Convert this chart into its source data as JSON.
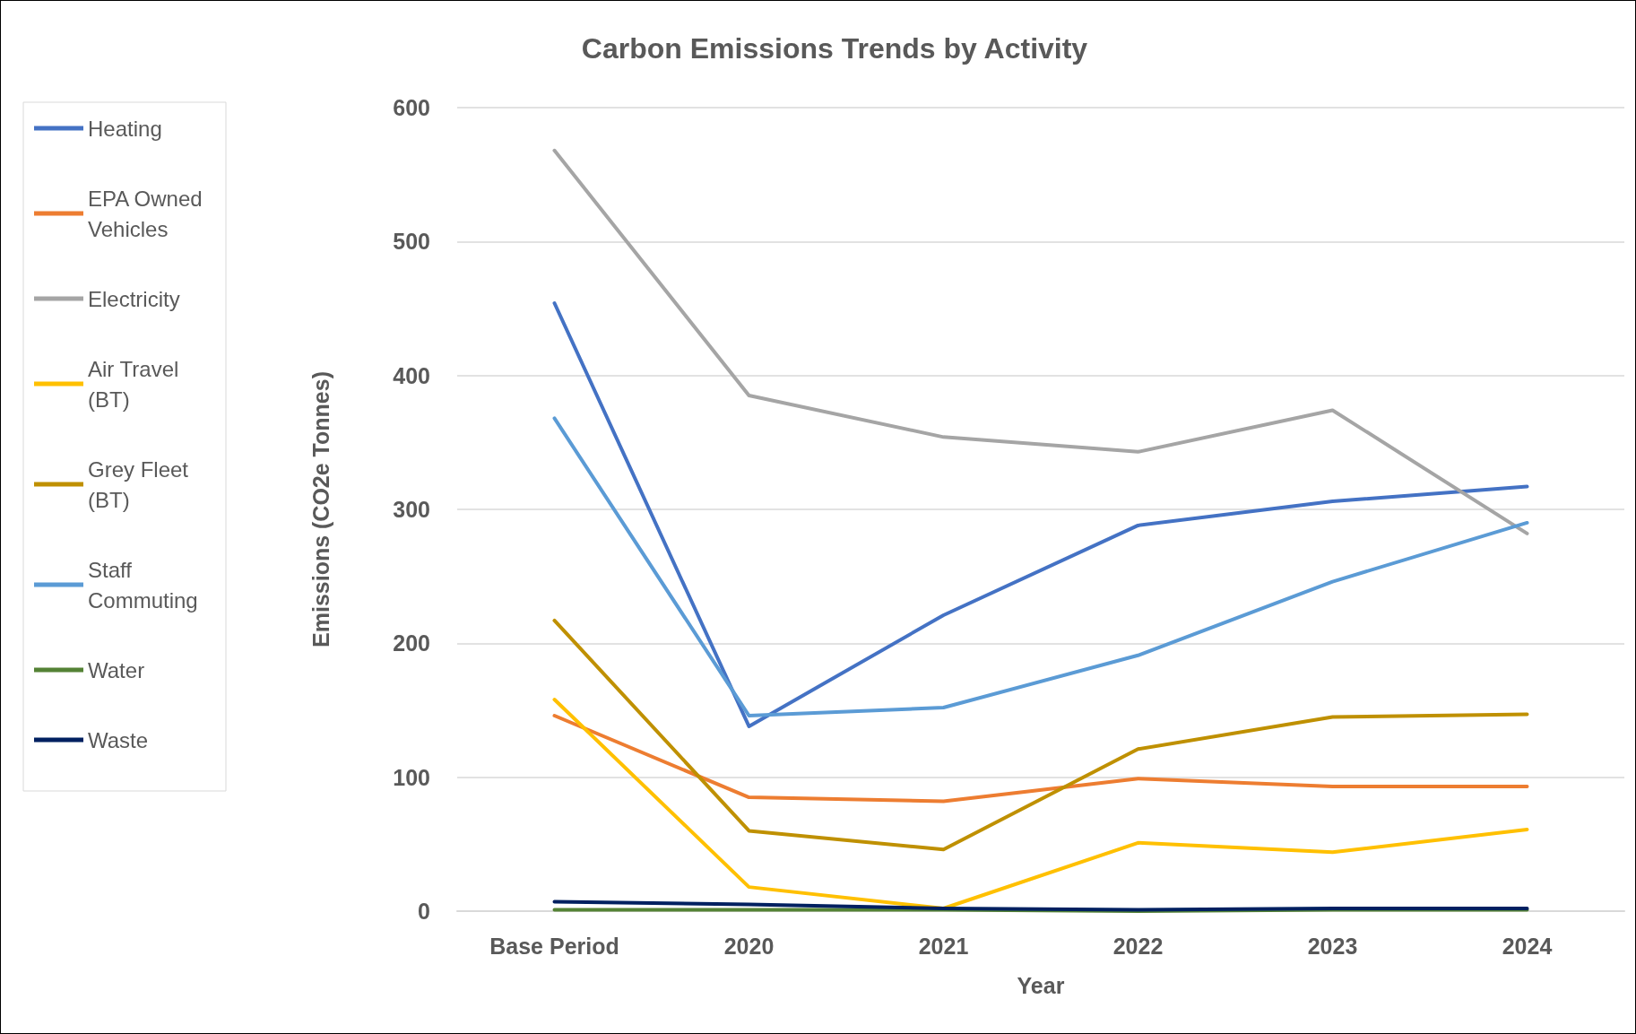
{
  "chart_data": {
    "type": "line",
    "title": "Carbon Emissions Trends by Activity",
    "xlabel": "Year",
    "ylabel": "Emissions (CO2e Tonnes)",
    "categories": [
      "Base Period",
      "2020",
      "2021",
      "2022",
      "2023",
      "2024"
    ],
    "series": [
      {
        "name": "Heating",
        "color": "#4472c4",
        "values": [
          454,
          138,
          221,
          288,
          306,
          317
        ]
      },
      {
        "name": "EPA Owned Vehicles",
        "color": "#ed7d31",
        "values": [
          146,
          85,
          82,
          99,
          93,
          93
        ]
      },
      {
        "name": "Electricity",
        "color": "#a5a5a5",
        "values": [
          568,
          385,
          354,
          343,
          374,
          282
        ]
      },
      {
        "name": "Air Travel (BT)",
        "color": "#ffc000",
        "values": [
          158,
          18,
          2,
          51,
          44,
          61
        ]
      },
      {
        "name": "Grey Fleet (BT)",
        "color": "#bf9000",
        "values": [
          217,
          60,
          46,
          121,
          145,
          147
        ]
      },
      {
        "name": "Staff Commuting",
        "color": "#5b9bd5",
        "values": [
          368,
          146,
          152,
          191,
          246,
          290
        ]
      },
      {
        "name": "Water",
        "color": "#548235",
        "values": [
          1,
          1,
          1,
          0,
          1,
          1
        ]
      },
      {
        "name": "Waste",
        "color": "#002060",
        "values": [
          7,
          5,
          2,
          1,
          2,
          2
        ]
      }
    ],
    "ylim": [
      0,
      600
    ],
    "yticks": [
      0,
      100,
      200,
      300,
      400,
      500,
      600
    ],
    "grid": "y",
    "legend": "left",
    "marker": "none",
    "line_style": "solid"
  }
}
